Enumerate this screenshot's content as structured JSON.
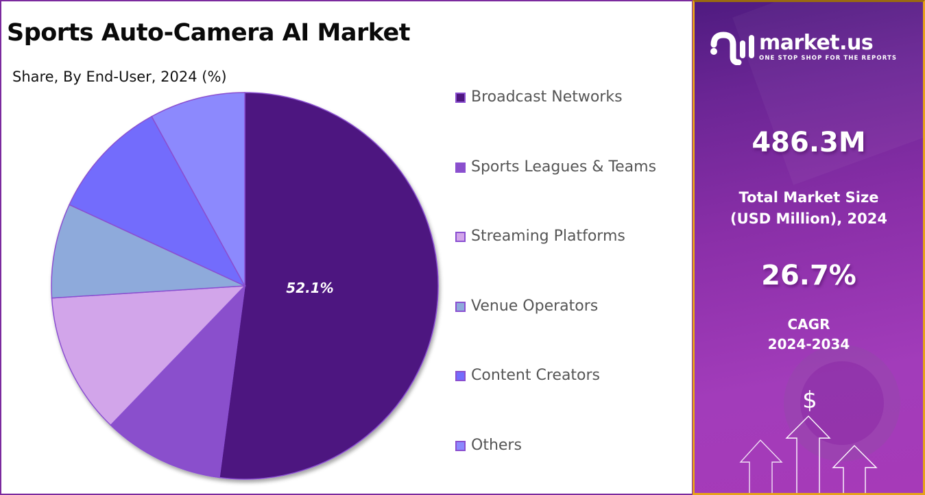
{
  "title": "Sports Auto-Camera AI Market",
  "subtitle": "Share, By End-User, 2024 (%)",
  "pie_label": "52.1%",
  "legend": [
    {
      "label": "Broadcast Networks",
      "color": "#4e1680"
    },
    {
      "label": "Sports Leagues & Teams",
      "color": "#8a4fcc"
    },
    {
      "label": "Streaming Platforms",
      "color": "#d2a5ea"
    },
    {
      "label": "Venue Operators",
      "color": "#8eaadb"
    },
    {
      "label": "Content Creators",
      "color": "#736cfc"
    },
    {
      "label": "Others",
      "color": "#8c89fd"
    }
  ],
  "sidebar": {
    "brand_name": "market.us",
    "brand_tagline": "ONE STOP SHOP FOR THE REPORTS",
    "market_size_value": "486.3M",
    "market_size_label_line1": "Total Market Size",
    "market_size_label_line2": "(USD Million), 2024",
    "cagr_value": "26.7%",
    "cagr_label_line1": "CAGR",
    "cagr_label_line2": "2024-2034",
    "currency_symbol": "$"
  },
  "chart_data": {
    "type": "pie",
    "title": "Sports Auto-Camera AI Market",
    "subtitle": "Share, By End-User, 2024 (%)",
    "categories": [
      "Broadcast Networks",
      "Sports Leagues & Teams",
      "Streaming Platforms",
      "Venue Operators",
      "Content Creators",
      "Others"
    ],
    "values": [
      52.1,
      10.1,
      11.8,
      7.9,
      10.1,
      8.0
    ],
    "colors": [
      "#4e1680",
      "#8a4fcc",
      "#d2a5ea",
      "#8eaadb",
      "#736cfc",
      "#8c89fd"
    ],
    "data_labels": [
      {
        "category": "Broadcast Networks",
        "text": "52.1%"
      }
    ],
    "legend_position": "right",
    "start_angle": "12 o'clock, clockwise"
  }
}
